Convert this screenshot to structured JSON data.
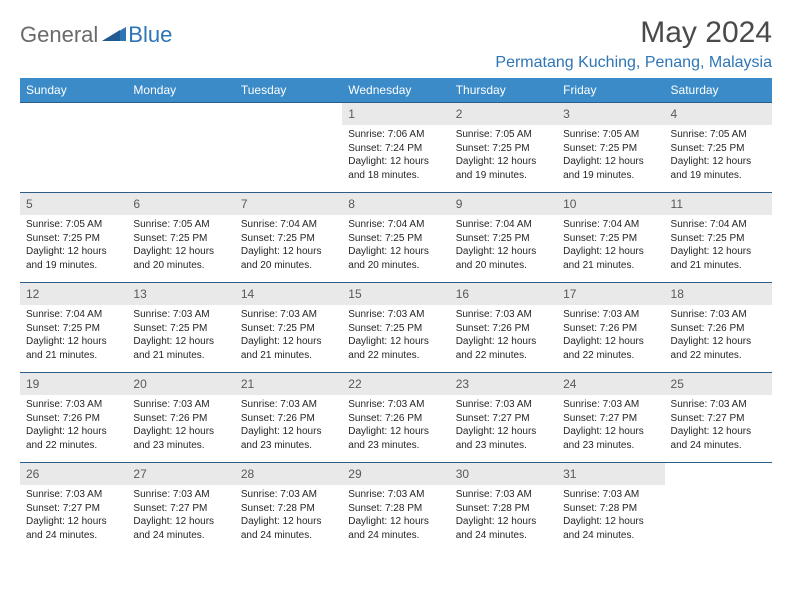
{
  "logo": {
    "part1": "General",
    "part2": "Blue"
  },
  "title": "May 2024",
  "location": "Permatang Kuching, Penang, Malaysia",
  "colors": {
    "header_bg": "#3b8bc8",
    "header_text": "#ffffff",
    "daynum_bg": "#e9e9e9",
    "daynum_text": "#595959",
    "cell_border": "#2e5c89",
    "accent": "#2e75b6",
    "body_text": "#262626"
  },
  "weekdays": [
    "Sunday",
    "Monday",
    "Tuesday",
    "Wednesday",
    "Thursday",
    "Friday",
    "Saturday"
  ],
  "weeks": [
    [
      null,
      null,
      null,
      {
        "day": "1",
        "sunrise": "7:06 AM",
        "sunset": "7:24 PM",
        "daylight": "12 hours and 18 minutes."
      },
      {
        "day": "2",
        "sunrise": "7:05 AM",
        "sunset": "7:25 PM",
        "daylight": "12 hours and 19 minutes."
      },
      {
        "day": "3",
        "sunrise": "7:05 AM",
        "sunset": "7:25 PM",
        "daylight": "12 hours and 19 minutes."
      },
      {
        "day": "4",
        "sunrise": "7:05 AM",
        "sunset": "7:25 PM",
        "daylight": "12 hours and 19 minutes."
      }
    ],
    [
      {
        "day": "5",
        "sunrise": "7:05 AM",
        "sunset": "7:25 PM",
        "daylight": "12 hours and 19 minutes."
      },
      {
        "day": "6",
        "sunrise": "7:05 AM",
        "sunset": "7:25 PM",
        "daylight": "12 hours and 20 minutes."
      },
      {
        "day": "7",
        "sunrise": "7:04 AM",
        "sunset": "7:25 PM",
        "daylight": "12 hours and 20 minutes."
      },
      {
        "day": "8",
        "sunrise": "7:04 AM",
        "sunset": "7:25 PM",
        "daylight": "12 hours and 20 minutes."
      },
      {
        "day": "9",
        "sunrise": "7:04 AM",
        "sunset": "7:25 PM",
        "daylight": "12 hours and 20 minutes."
      },
      {
        "day": "10",
        "sunrise": "7:04 AM",
        "sunset": "7:25 PM",
        "daylight": "12 hours and 21 minutes."
      },
      {
        "day": "11",
        "sunrise": "7:04 AM",
        "sunset": "7:25 PM",
        "daylight": "12 hours and 21 minutes."
      }
    ],
    [
      {
        "day": "12",
        "sunrise": "7:04 AM",
        "sunset": "7:25 PM",
        "daylight": "12 hours and 21 minutes."
      },
      {
        "day": "13",
        "sunrise": "7:03 AM",
        "sunset": "7:25 PM",
        "daylight": "12 hours and 21 minutes."
      },
      {
        "day": "14",
        "sunrise": "7:03 AM",
        "sunset": "7:25 PM",
        "daylight": "12 hours and 21 minutes."
      },
      {
        "day": "15",
        "sunrise": "7:03 AM",
        "sunset": "7:25 PM",
        "daylight": "12 hours and 22 minutes."
      },
      {
        "day": "16",
        "sunrise": "7:03 AM",
        "sunset": "7:26 PM",
        "daylight": "12 hours and 22 minutes."
      },
      {
        "day": "17",
        "sunrise": "7:03 AM",
        "sunset": "7:26 PM",
        "daylight": "12 hours and 22 minutes."
      },
      {
        "day": "18",
        "sunrise": "7:03 AM",
        "sunset": "7:26 PM",
        "daylight": "12 hours and 22 minutes."
      }
    ],
    [
      {
        "day": "19",
        "sunrise": "7:03 AM",
        "sunset": "7:26 PM",
        "daylight": "12 hours and 22 minutes."
      },
      {
        "day": "20",
        "sunrise": "7:03 AM",
        "sunset": "7:26 PM",
        "daylight": "12 hours and 23 minutes."
      },
      {
        "day": "21",
        "sunrise": "7:03 AM",
        "sunset": "7:26 PM",
        "daylight": "12 hours and 23 minutes."
      },
      {
        "day": "22",
        "sunrise": "7:03 AM",
        "sunset": "7:26 PM",
        "daylight": "12 hours and 23 minutes."
      },
      {
        "day": "23",
        "sunrise": "7:03 AM",
        "sunset": "7:27 PM",
        "daylight": "12 hours and 23 minutes."
      },
      {
        "day": "24",
        "sunrise": "7:03 AM",
        "sunset": "7:27 PM",
        "daylight": "12 hours and 23 minutes."
      },
      {
        "day": "25",
        "sunrise": "7:03 AM",
        "sunset": "7:27 PM",
        "daylight": "12 hours and 24 minutes."
      }
    ],
    [
      {
        "day": "26",
        "sunrise": "7:03 AM",
        "sunset": "7:27 PM",
        "daylight": "12 hours and 24 minutes."
      },
      {
        "day": "27",
        "sunrise": "7:03 AM",
        "sunset": "7:27 PM",
        "daylight": "12 hours and 24 minutes."
      },
      {
        "day": "28",
        "sunrise": "7:03 AM",
        "sunset": "7:28 PM",
        "daylight": "12 hours and 24 minutes."
      },
      {
        "day": "29",
        "sunrise": "7:03 AM",
        "sunset": "7:28 PM",
        "daylight": "12 hours and 24 minutes."
      },
      {
        "day": "30",
        "sunrise": "7:03 AM",
        "sunset": "7:28 PM",
        "daylight": "12 hours and 24 minutes."
      },
      {
        "day": "31",
        "sunrise": "7:03 AM",
        "sunset": "7:28 PM",
        "daylight": "12 hours and 24 minutes."
      },
      null
    ]
  ],
  "labels": {
    "sunrise": "Sunrise:",
    "sunset": "Sunset:",
    "daylight": "Daylight:"
  }
}
